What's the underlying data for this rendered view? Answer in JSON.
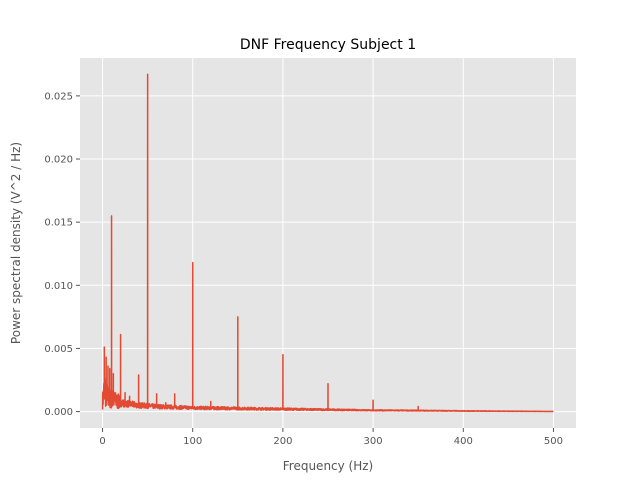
{
  "chart_data": {
    "type": "line",
    "title": "DNF Frequency Subject 1",
    "xlabel": "Frequency (Hz)",
    "ylabel": "Power spectral density (V^2 / Hz)",
    "xlim": [
      -25,
      525
    ],
    "ylim": [
      -0.0013,
      0.028
    ],
    "x_ticks": [
      0,
      100,
      200,
      300,
      400,
      500
    ],
    "y_ticks": [
      0.0,
      0.005,
      0.01,
      0.015,
      0.02,
      0.025
    ],
    "y_tick_labels": [
      "0.000",
      "0.005",
      "0.010",
      "0.015",
      "0.020",
      "0.025"
    ],
    "grid": true,
    "colors": {
      "line": "#E24A33",
      "plot_bg": "#E5E5E5",
      "grid": "#FFFFFF",
      "text": "#555555"
    },
    "baseline": [
      [
        0,
        0.0008
      ],
      [
        2,
        0.0018
      ],
      [
        5,
        0.0012
      ],
      [
        10,
        0.001
      ],
      [
        20,
        0.0007
      ],
      [
        40,
        0.0005
      ],
      [
        60,
        0.0004
      ],
      [
        100,
        0.0003
      ],
      [
        150,
        0.00025
      ],
      [
        200,
        0.0002
      ],
      [
        250,
        0.00015
      ],
      [
        300,
        0.0001
      ],
      [
        350,
        8e-05
      ],
      [
        400,
        5e-05
      ],
      [
        450,
        3e-05
      ],
      [
        500,
        1e-05
      ]
    ],
    "peaks": [
      {
        "x": 2,
        "y": 0.0051
      },
      {
        "x": 4,
        "y": 0.0043
      },
      {
        "x": 6,
        "y": 0.0036
      },
      {
        "x": 8,
        "y": 0.0034
      },
      {
        "x": 10,
        "y": 0.0155
      },
      {
        "x": 12,
        "y": 0.003
      },
      {
        "x": 20,
        "y": 0.0061
      },
      {
        "x": 25,
        "y": 0.0015
      },
      {
        "x": 30,
        "y": 0.0012
      },
      {
        "x": 40,
        "y": 0.0029
      },
      {
        "x": 50,
        "y": 0.0267
      },
      {
        "x": 60,
        "y": 0.0014
      },
      {
        "x": 70,
        "y": 0.0007
      },
      {
        "x": 80,
        "y": 0.0014
      },
      {
        "x": 100,
        "y": 0.0118
      },
      {
        "x": 120,
        "y": 0.0008
      },
      {
        "x": 150,
        "y": 0.0075
      },
      {
        "x": 200,
        "y": 0.0045
      },
      {
        "x": 250,
        "y": 0.0022
      },
      {
        "x": 300,
        "y": 0.0009
      },
      {
        "x": 350,
        "y": 0.0004
      }
    ]
  }
}
